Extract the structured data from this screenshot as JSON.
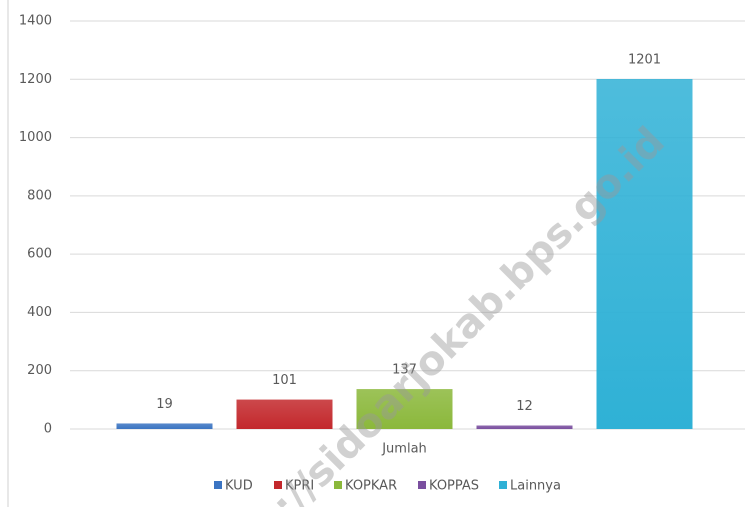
{
  "chart_data": {
    "type": "bar",
    "categories": [
      "Jumlah"
    ],
    "series": [
      {
        "name": "KUD",
        "color": "#3b74c2",
        "values": [
          19
        ]
      },
      {
        "name": "KPRI",
        "color": "#c3282c",
        "values": [
          101
        ]
      },
      {
        "name": "KOPKAR",
        "color": "#8bb83b",
        "values": [
          137
        ]
      },
      {
        "name": "KOPPAS",
        "color": "#7a4f9f",
        "values": [
          12
        ]
      },
      {
        "name": "Lainnya",
        "color": "#2fb1d6",
        "values": [
          1201
        ]
      }
    ],
    "ylim": [
      0,
      1400
    ],
    "yticks": [
      0,
      200,
      400,
      600,
      800,
      1000,
      1200,
      1400
    ],
    "grid": true,
    "legend": "bottom",
    "watermark": "://sidoarjokab.bps.go.id"
  }
}
